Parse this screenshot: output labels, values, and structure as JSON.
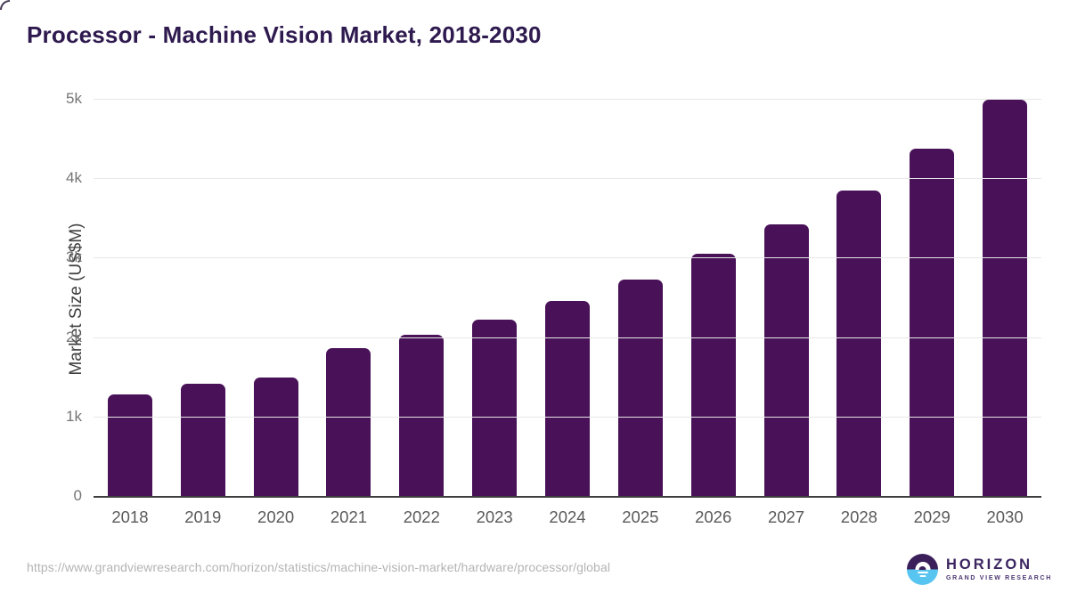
{
  "title": "Processor - Machine Vision Market, 2018-2030",
  "chart_data": {
    "type": "bar",
    "title": "Processor - Machine Vision Market, 2018-2030",
    "categories": [
      "2018",
      "2019",
      "2020",
      "2021",
      "2022",
      "2023",
      "2024",
      "2025",
      "2026",
      "2027",
      "2028",
      "2029",
      "2030"
    ],
    "values": [
      1290,
      1420,
      1500,
      1870,
      2040,
      2230,
      2470,
      2730,
      3060,
      3430,
      3860,
      4380,
      5000
    ],
    "xlabel": "",
    "ylabel": "Market Size (US$M)",
    "ylim": [
      0,
      5000
    ],
    "ytick_values": [
      0,
      1000,
      2000,
      3000,
      4000,
      5000
    ],
    "ytick_labels": [
      "0",
      "1k",
      "2k",
      "3k",
      "4k",
      "5k"
    ],
    "grid": true,
    "legend": "none",
    "bar_color": "#481158"
  },
  "footer": {
    "source_url": "https://www.grandviewresearch.com/horizon/statistics/machine-vision-market/hardware/processor/global",
    "logo": {
      "name": "HORIZON",
      "subtitle": "GRAND VIEW RESEARCH"
    }
  },
  "colors": {
    "bar": "#481158",
    "title_text": "#2e1a4f",
    "axis_line": "#3d3d3d",
    "gridline": "#e7e7e7",
    "tick_text": "#757575",
    "xlabel_text": "#5a5a5a",
    "url_text": "#b4b4b4",
    "logo_purple": "#3b1f5a",
    "logo_blue": "#58c5f0"
  }
}
